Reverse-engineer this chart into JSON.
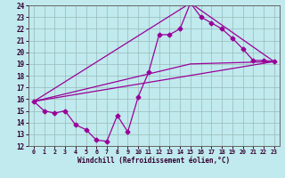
{
  "xlabel": "Windchill (Refroidissement éolien,°C)",
  "xlim_min": -0.5,
  "xlim_max": 23.5,
  "ylim_min": 12,
  "ylim_max": 24,
  "yticks": [
    12,
    13,
    14,
    15,
    16,
    17,
    18,
    19,
    20,
    21,
    22,
    23,
    24
  ],
  "xticks": [
    0,
    1,
    2,
    3,
    4,
    5,
    6,
    7,
    8,
    9,
    10,
    11,
    12,
    13,
    14,
    15,
    16,
    17,
    18,
    19,
    20,
    21,
    22,
    23
  ],
  "line_color": "#990099",
  "bg_color": "#c0eaed",
  "grid_color": "#9ab8ba",
  "marker": "D",
  "marker_size": 2.5,
  "line_width": 0.9,
  "data_line": {
    "x": [
      0,
      1,
      2,
      3,
      4,
      5,
      6,
      7,
      8,
      9,
      10,
      11,
      12,
      13,
      14,
      15,
      16,
      17,
      18,
      19,
      20,
      21,
      22,
      23
    ],
    "y": [
      15.8,
      15.0,
      14.8,
      15.0,
      13.8,
      13.4,
      12.5,
      12.4,
      14.6,
      13.2,
      16.2,
      18.3,
      21.5,
      21.5,
      22.0,
      24.2,
      23.0,
      22.5,
      22.0,
      21.2,
      20.3,
      19.3,
      19.3,
      19.2
    ]
  },
  "straight_lines": [
    {
      "x": [
        0,
        23
      ],
      "y": [
        15.8,
        19.2
      ]
    },
    {
      "x": [
        0,
        15,
        23
      ],
      "y": [
        15.8,
        24.2,
        19.2
      ]
    },
    {
      "x": [
        0,
        15,
        23
      ],
      "y": [
        15.8,
        19.0,
        19.2
      ]
    }
  ]
}
